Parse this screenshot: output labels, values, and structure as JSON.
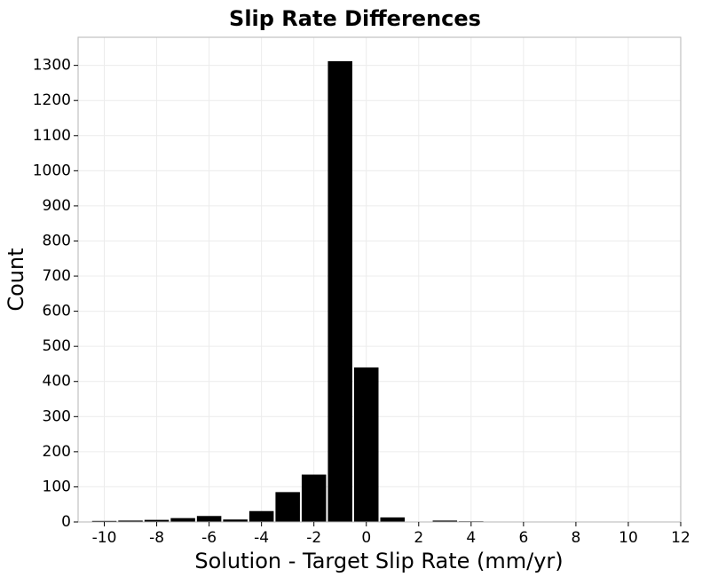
{
  "chart_data": {
    "type": "bar",
    "title": "Slip Rate Differences",
    "xlabel": "Solution - Target Slip Rate (mm/yr)",
    "ylabel": "Count",
    "xlim": [
      -11,
      12
    ],
    "ylim": [
      0,
      1380
    ],
    "xticks": [
      -10,
      -8,
      -6,
      -4,
      -2,
      0,
      2,
      4,
      6,
      8,
      10,
      12
    ],
    "xtick_labels": [
      "-10",
      "-8",
      "-6",
      "-4",
      "-2",
      "0",
      "2",
      "4",
      "6",
      "8",
      "10",
      "12"
    ],
    "yticks": [
      0,
      100,
      200,
      300,
      400,
      500,
      600,
      700,
      800,
      900,
      1000,
      1100,
      1200,
      1300
    ],
    "ytick_labels": [
      "0",
      "100",
      "200",
      "300",
      "400",
      "500",
      "600",
      "700",
      "800",
      "900",
      "1000",
      "1100",
      "1200",
      "1300"
    ],
    "grid": true,
    "bar_color": "#000000",
    "bins": [
      {
        "x": -10,
        "value": 3
      },
      {
        "x": -9,
        "value": 4
      },
      {
        "x": -8,
        "value": 6
      },
      {
        "x": -7,
        "value": 11
      },
      {
        "x": -6,
        "value": 17
      },
      {
        "x": -5,
        "value": 7
      },
      {
        "x": -4,
        "value": 31
      },
      {
        "x": -3,
        "value": 85
      },
      {
        "x": -2,
        "value": 135
      },
      {
        "x": -1,
        "value": 1312
      },
      {
        "x": 0,
        "value": 440
      },
      {
        "x": 1,
        "value": 13
      },
      {
        "x": 2,
        "value": 1
      },
      {
        "x": 3,
        "value": 4
      },
      {
        "x": 4,
        "value": 2
      },
      {
        "x": 5,
        "value": 0
      },
      {
        "x": 6,
        "value": 0
      },
      {
        "x": 7,
        "value": 0
      },
      {
        "x": 8,
        "value": 0
      },
      {
        "x": 9,
        "value": 0
      },
      {
        "x": 10,
        "value": 0
      }
    ]
  }
}
